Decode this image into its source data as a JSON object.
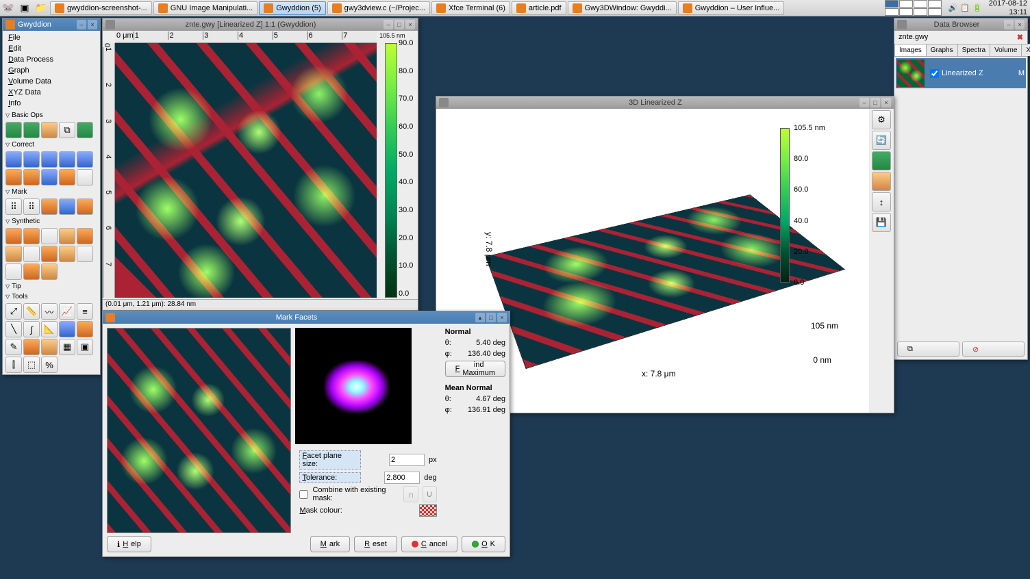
{
  "taskbar": {
    "items": [
      {
        "label": "gwyddion-screenshot-..."
      },
      {
        "label": "GNU Image Manipulati..."
      },
      {
        "label": "Gwyddion (5)"
      },
      {
        "label": "gwy3dview.c (~/Projec..."
      },
      {
        "label": "Xfce Terminal (6)"
      },
      {
        "label": "article.pdf"
      },
      {
        "label": "Gwy3DWindow: Gwyddi..."
      },
      {
        "label": "Gwyddion – User Influe..."
      }
    ],
    "date": "2017-08-12",
    "time": "13:11"
  },
  "toolbox": {
    "title": "Gwyddion",
    "menus": [
      "File",
      "Edit",
      "Data Process",
      "Graph",
      "Volume Data",
      "XYZ Data",
      "Info"
    ],
    "sections": [
      "Basic Ops",
      "Correct",
      "Mark",
      "Synthetic",
      "Tip",
      "Tools"
    ]
  },
  "dataview": {
    "title": "znte.gwy [Linearized Z] 1:1 (Gwyddion)",
    "ruler_unit": "0 μm",
    "ruler_ticks": [
      "1",
      "2",
      "3",
      "4",
      "5",
      "6",
      "7"
    ],
    "cb_top": "105.5 nm",
    "cb_ticks": [
      "90.0",
      "80.0",
      "70.0",
      "60.0",
      "50.0",
      "40.0",
      "30.0",
      "20.0",
      "10.0",
      "0.0"
    ],
    "status": "(0.01 μm, 1.21 μm): 28.84 nm"
  },
  "browser": {
    "title": "Data Browser",
    "file": "znte.gwy",
    "tabs": [
      "Images",
      "Graphs",
      "Spectra",
      "Volume",
      "XYZ"
    ],
    "item_label": "Linearized Z",
    "item_flag": "M"
  },
  "view3d": {
    "title": "3D Linearized Z",
    "scale_ticks": [
      "105.5 nm",
      "80.0",
      "60.0",
      "40.0",
      "20.0",
      "0.0"
    ],
    "x_label": "x: 7.8 μm",
    "y_label": "y: 7.8 μm",
    "z_top": "105 nm",
    "z_bot": "0 nm"
  },
  "facets": {
    "title": "Mark Facets",
    "normal_hdr": "Normal",
    "theta": "θ:",
    "theta_val": "5.40 deg",
    "phi": "φ:",
    "phi_val": "136.40 deg",
    "find_max": "Find Maximum",
    "mean_hdr": "Mean Normal",
    "theta2_val": "4.67 deg",
    "phi2_val": "136.91 deg",
    "facet_size_label": "Facet plane size:",
    "facet_size_val": "2",
    "facet_size_unit": "px",
    "tol_label": "Tolerance:",
    "tol_val": "2.800",
    "tol_unit": "deg",
    "combine_label": "Combine with existing mask:",
    "mask_label": "Mask colour:",
    "help": "Help",
    "mark": "Mark",
    "reset": "Reset",
    "cancel": "Cancel",
    "ok": "OK"
  }
}
